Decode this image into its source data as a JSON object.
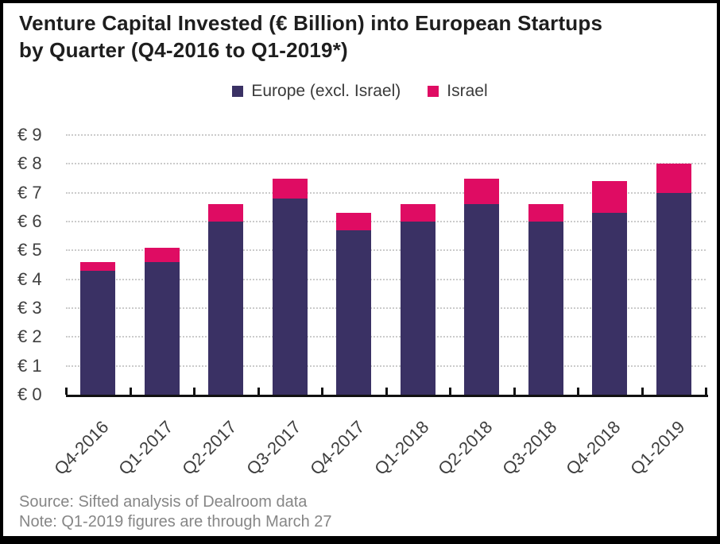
{
  "header": {
    "title_line1": "Venture Capital Invested (€ Billion) into European Startups",
    "title_line2": "by Quarter (Q4-2016 to Q1-2019*)"
  },
  "legend": {
    "items": [
      {
        "label": "Europe (excl. Israel)",
        "color": "#3A3164"
      },
      {
        "label": "Israel",
        "color": "#DF0C63"
      }
    ]
  },
  "footer": {
    "source": "Source: Sifted analysis of Dealroom data",
    "note": "Note: Q1-2019 figures are through March 27"
  },
  "colors": {
    "europe": "#3A3164",
    "israel": "#DF0C63",
    "title_text": "#1E1E1E",
    "axis_text": "#3F3F3F",
    "footer_text": "#868686",
    "gridline": "#CBCBCB",
    "axis_line": "#111111",
    "frame_border": "#000000",
    "background": "#FFFFFF"
  },
  "chart_data": {
    "type": "bar",
    "stacked": true,
    "title": "Venture Capital Invested (€ Billion) into European Startups by Quarter (Q4-2016 to Q1-2019*)",
    "categories": [
      "Q4-2016",
      "Q1-2017",
      "Q2-2017",
      "Q3-2017",
      "Q4-2017",
      "Q1-2018",
      "Q2-2018",
      "Q3-2018",
      "Q4-2018",
      "Q1-2019"
    ],
    "series": [
      {
        "name": "Europe (excl. Israel)",
        "color": "#3A3164",
        "values": [
          4.3,
          4.6,
          6.0,
          6.8,
          5.7,
          6.0,
          6.6,
          6.0,
          6.3,
          7.0
        ]
      },
      {
        "name": "Israel",
        "color": "#DF0C63",
        "values": [
          0.3,
          0.5,
          0.6,
          0.7,
          0.6,
          0.6,
          0.9,
          0.6,
          1.1,
          1.0
        ]
      }
    ],
    "stack_totals": [
      4.6,
      5.1,
      6.6,
      7.5,
      6.3,
      6.6,
      7.5,
      6.6,
      7.4,
      8.0
    ],
    "xlabel": "",
    "ylabel": "",
    "ylim": [
      0,
      9
    ],
    "y_tick_labels": [
      "€ 0",
      "€ 1",
      "€ 2",
      "€ 3",
      "€ 4",
      "€ 5",
      "€ 6",
      "€ 7",
      "€ 8",
      "€ 9"
    ],
    "grid": "horizontal dotted",
    "legend_position": "top"
  }
}
